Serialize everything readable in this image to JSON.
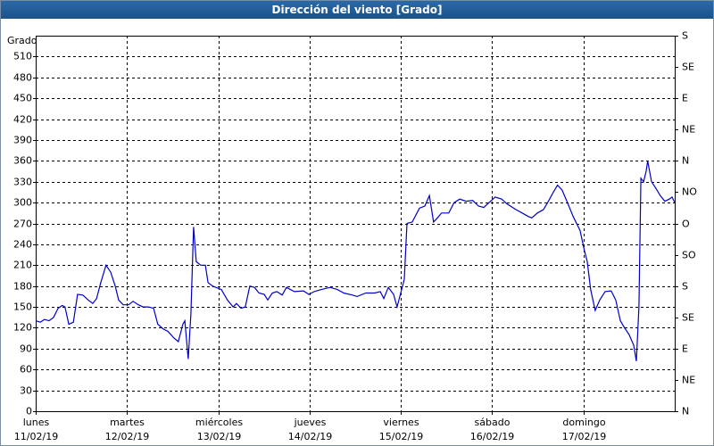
{
  "chart_data": {
    "type": "line",
    "title": "Dirección del viento [Grado]",
    "ylabel": "Grado",
    "xlim": [
      0,
      168
    ],
    "xticks": [
      {
        "value": 0,
        "label": [
          "lunes",
          "11/02/19"
        ]
      },
      {
        "value": 24,
        "label": [
          "martes",
          "12/02/19"
        ]
      },
      {
        "value": 48,
        "label": [
          "miércoles",
          "13/02/19"
        ]
      },
      {
        "value": 72,
        "label": [
          "jueves",
          "14/02/19"
        ]
      },
      {
        "value": 96,
        "label": [
          "viernes",
          "15/02/19"
        ]
      },
      {
        "value": 120,
        "label": [
          "sábado",
          "16/02/19"
        ]
      },
      {
        "value": 144,
        "label": [
          "domingo",
          "17/02/19"
        ]
      }
    ],
    "ylim": [
      0,
      540
    ],
    "yticks": [
      0,
      30,
      60,
      90,
      120,
      150,
      180,
      210,
      240,
      270,
      300,
      330,
      360,
      390,
      420,
      450,
      480,
      510
    ],
    "y2lim": [
      0,
      540
    ],
    "y2ticks": [
      {
        "value": 0,
        "label": "N"
      },
      {
        "value": 45,
        "label": "NE"
      },
      {
        "value": 90,
        "label": "E"
      },
      {
        "value": 135,
        "label": "SE"
      },
      {
        "value": 180,
        "label": "S"
      },
      {
        "value": 225,
        "label": "SO"
      },
      {
        "value": 270,
        "label": "O"
      },
      {
        "value": 315,
        "label": "NO"
      },
      {
        "value": 360,
        "label": "N"
      },
      {
        "value": 405,
        "label": "NE"
      },
      {
        "value": 450,
        "label": "E"
      },
      {
        "value": 495,
        "label": "SE"
      },
      {
        "value": 540,
        "label": "S"
      }
    ],
    "grid": true,
    "series": [
      {
        "name": "Dirección del viento",
        "color": "#0000c8",
        "x": [
          0,
          1.2,
          2.3,
          3.5,
          4.7,
          5.9,
          7.0,
          7.7,
          8.7,
          9.9,
          11.0,
          12.4,
          13.8,
          15.0,
          16.0,
          17.1,
          18.5,
          19.7,
          20.9,
          21.8,
          23.0,
          24.4,
          25.6,
          27.0,
          28.2,
          29.6,
          31.0,
          32.1,
          33.6,
          34.7,
          36.4,
          37.5,
          38.7,
          39.2,
          40.1,
          40.8,
          41.5,
          42.2,
          43.4,
          44.6,
          45.3,
          46.5,
          48.8,
          50.4,
          51.9,
          52.8,
          54.0,
          55.1,
          56.3,
          57.5,
          58.7,
          60.1,
          61.0,
          62.2,
          63.4,
          64.8,
          65.9,
          68.0,
          70.4,
          71.8,
          73.2,
          75.1,
          77.4,
          79.3,
          81.0,
          83.3,
          84.5,
          86.8,
          89.1,
          90.6,
          91.5,
          92.7,
          94.1,
          95.0,
          96.2,
          96.9,
          97.6,
          99.0,
          100.9,
          102.3,
          103.5,
          104.6,
          105.6,
          106.7,
          108.6,
          110.0,
          111.5,
          113.1,
          114.9,
          116.4,
          117.8,
          119.2,
          120.8,
          122.5,
          123.9,
          124.8,
          126.2,
          127.9,
          129.5,
          130.4,
          131.9,
          133.5,
          135.1,
          136.1,
          137.2,
          138.4,
          139.8,
          141.3,
          143.1,
          144.3,
          145.0,
          145.9,
          147.1,
          148.3,
          149.7,
          151.3,
          152.5,
          153.7,
          154.8,
          156.0,
          157.2,
          157.9,
          158.6,
          159.1,
          159.8,
          160.5,
          160.9,
          161.9,
          163.1,
          164.2,
          165.4,
          166.6,
          167.3,
          168.0
        ],
        "values": [
          130,
          128,
          132,
          130,
          135,
          148,
          152,
          150,
          125,
          128,
          168,
          167,
          160,
          155,
          162,
          185,
          210,
          200,
          180,
          160,
          153,
          153,
          158,
          153,
          150,
          150,
          148,
          125,
          118,
          115,
          105,
          100,
          125,
          130,
          75,
          140,
          265,
          215,
          210,
          210,
          185,
          180,
          175,
          160,
          150,
          155,
          148,
          150,
          180,
          178,
          170,
          168,
          160,
          170,
          172,
          167,
          178,
          172,
          173,
          168,
          172,
          175,
          178,
          175,
          170,
          167,
          165,
          170,
          170,
          172,
          162,
          178,
          168,
          150,
          175,
          190,
          270,
          272,
          292,
          295,
          310,
          272,
          278,
          285,
          285,
          300,
          305,
          302,
          303,
          295,
          293,
          300,
          308,
          305,
          298,
          295,
          290,
          285,
          280,
          278,
          285,
          290,
          305,
          315,
          325,
          318,
          300,
          280,
          260,
          230,
          215,
          175,
          145,
          160,
          172,
          173,
          160,
          130,
          120,
          110,
          95,
          72,
          150,
          335,
          330,
          345,
          360,
          330,
          320,
          310,
          302,
          305,
          308,
          300
        ]
      }
    ]
  }
}
